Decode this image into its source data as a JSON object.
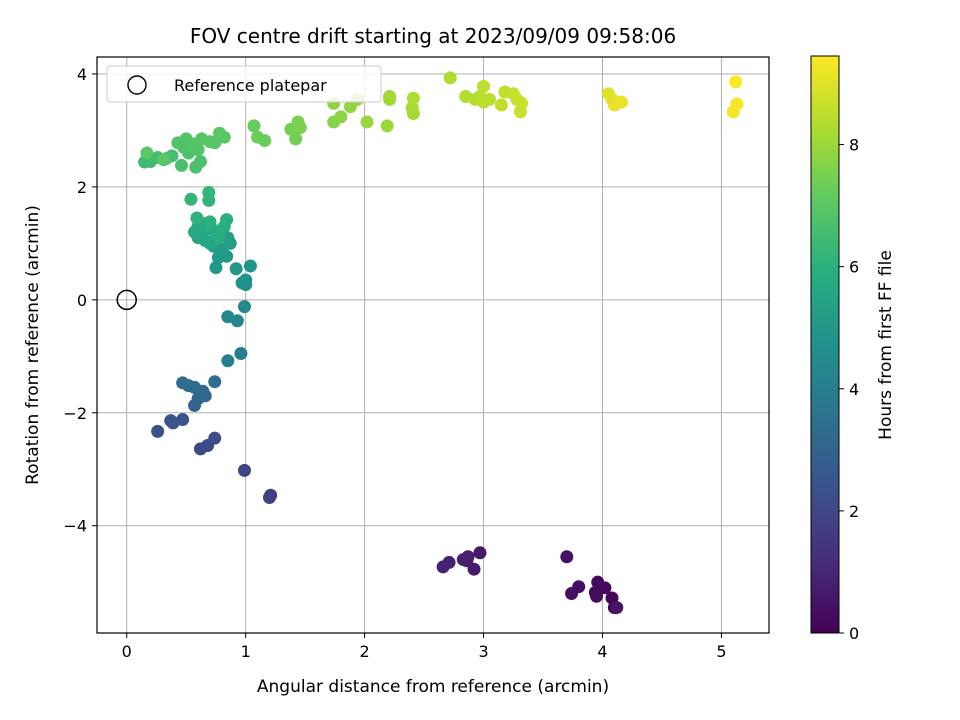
{
  "chart_data": {
    "type": "scatter",
    "title": "FOV centre drift starting at 2023/09/09 09:58:06",
    "xlabel": "Angular distance from reference (arcmin)",
    "ylabel": "Rotation from reference (arcmin)",
    "colorbar_label": "Hours from first FF file",
    "xlim": [
      -0.25,
      5.4
    ],
    "ylim": [
      -5.9,
      4.3
    ],
    "clim": [
      0,
      9.45
    ],
    "xticks": [
      0,
      1,
      2,
      3,
      4,
      5
    ],
    "yticks": [
      -4,
      -2,
      0,
      2,
      4
    ],
    "colorbar_ticks": [
      0,
      2,
      4,
      6,
      8
    ],
    "grid": true,
    "colormap": "viridis",
    "legend": {
      "location": "upper-left",
      "label": "Reference platepar"
    },
    "reference_point": {
      "x": 0,
      "y": 0
    },
    "points": [
      {
        "x": 4.1,
        "y": -5.45,
        "t": 0.05
      },
      {
        "x": 4.08,
        "y": -5.28,
        "t": 0.1
      },
      {
        "x": 4.02,
        "y": -5.1,
        "t": 0.15
      },
      {
        "x": 3.96,
        "y": -5.0,
        "t": 0.2
      },
      {
        "x": 3.94,
        "y": -5.18,
        "t": 0.25
      },
      {
        "x": 3.95,
        "y": -5.25,
        "t": 0.3
      },
      {
        "x": 3.8,
        "y": -5.08,
        "t": 0.35
      },
      {
        "x": 3.74,
        "y": -5.2,
        "t": 0.4
      },
      {
        "x": 3.7,
        "y": -4.55,
        "t": 0.45
      },
      {
        "x": 4.12,
        "y": -5.45,
        "t": 0.5
      },
      {
        "x": 2.97,
        "y": -4.48,
        "t": 0.65
      },
      {
        "x": 2.92,
        "y": -4.77,
        "t": 0.7
      },
      {
        "x": 2.86,
        "y": -4.62,
        "t": 0.75
      },
      {
        "x": 2.87,
        "y": -4.55,
        "t": 0.8
      },
      {
        "x": 2.83,
        "y": -4.6,
        "t": 0.85
      },
      {
        "x": 2.71,
        "y": -4.65,
        "t": 0.9
      },
      {
        "x": 2.66,
        "y": -4.73,
        "t": 0.95
      },
      {
        "x": 1.21,
        "y": -3.46,
        "t": 1.75
      },
      {
        "x": 1.2,
        "y": -3.5,
        "t": 1.8
      },
      {
        "x": 0.99,
        "y": -3.02,
        "t": 1.9
      },
      {
        "x": 0.62,
        "y": -2.64,
        "t": 2.1
      },
      {
        "x": 0.68,
        "y": -2.58,
        "t": 2.15
      },
      {
        "x": 0.74,
        "y": -2.45,
        "t": 2.2
      },
      {
        "x": 0.26,
        "y": -2.33,
        "t": 2.3
      },
      {
        "x": 0.37,
        "y": -2.14,
        "t": 2.35
      },
      {
        "x": 0.39,
        "y": -2.18,
        "t": 2.4
      },
      {
        "x": 0.47,
        "y": -2.12,
        "t": 2.45
      },
      {
        "x": 0.57,
        "y": -1.87,
        "t": 3.0
      },
      {
        "x": 0.6,
        "y": -1.75,
        "t": 3.05
      },
      {
        "x": 0.66,
        "y": -1.7,
        "t": 3.1
      },
      {
        "x": 0.64,
        "y": -1.62,
        "t": 3.2
      },
      {
        "x": 0.57,
        "y": -1.55,
        "t": 3.25
      },
      {
        "x": 0.52,
        "y": -1.52,
        "t": 3.3
      },
      {
        "x": 0.47,
        "y": -1.47,
        "t": 3.35
      },
      {
        "x": 0.74,
        "y": -1.45,
        "t": 3.4
      },
      {
        "x": 0.85,
        "y": -1.08,
        "t": 4.0
      },
      {
        "x": 0.96,
        "y": -0.95,
        "t": 4.05
      },
      {
        "x": 0.93,
        "y": -0.37,
        "t": 4.3
      },
      {
        "x": 0.85,
        "y": -0.3,
        "t": 4.35
      },
      {
        "x": 0.99,
        "y": -0.12,
        "t": 4.4
      },
      {
        "x": 1.0,
        "y": 0.27,
        "t": 4.7
      },
      {
        "x": 1.0,
        "y": 0.35,
        "t": 4.75
      },
      {
        "x": 0.97,
        "y": 0.3,
        "t": 4.8
      },
      {
        "x": 1.04,
        "y": 0.6,
        "t": 4.9
      },
      {
        "x": 0.92,
        "y": 0.55,
        "t": 4.95
      },
      {
        "x": 0.75,
        "y": 0.57,
        "t": 5.0
      },
      {
        "x": 0.77,
        "y": 0.75,
        "t": 5.05
      },
      {
        "x": 0.84,
        "y": 0.77,
        "t": 5.1
      },
      {
        "x": 0.8,
        "y": 0.9,
        "t": 5.15
      },
      {
        "x": 0.73,
        "y": 0.95,
        "t": 5.2
      },
      {
        "x": 0.87,
        "y": 1.0,
        "t": 5.25
      },
      {
        "x": 0.85,
        "y": 1.1,
        "t": 5.3
      },
      {
        "x": 0.8,
        "y": 1.2,
        "t": 5.35
      },
      {
        "x": 0.74,
        "y": 1.05,
        "t": 5.4
      },
      {
        "x": 0.7,
        "y": 1.0,
        "t": 5.45
      },
      {
        "x": 0.66,
        "y": 1.05,
        "t": 5.5
      },
      {
        "x": 0.64,
        "y": 1.15,
        "t": 5.55
      },
      {
        "x": 0.6,
        "y": 1.1,
        "t": 5.6
      },
      {
        "x": 0.57,
        "y": 1.2,
        "t": 5.65
      },
      {
        "x": 0.6,
        "y": 1.3,
        "t": 5.7
      },
      {
        "x": 0.66,
        "y": 1.35,
        "t": 5.75
      },
      {
        "x": 0.72,
        "y": 1.25,
        "t": 5.8
      },
      {
        "x": 0.77,
        "y": 1.1,
        "t": 5.85
      },
      {
        "x": 0.82,
        "y": 1.3,
        "t": 5.9
      },
      {
        "x": 0.84,
        "y": 1.42,
        "t": 5.95
      },
      {
        "x": 0.7,
        "y": 1.38,
        "t": 6.0
      },
      {
        "x": 0.59,
        "y": 1.45,
        "t": 6.05
      },
      {
        "x": 0.69,
        "y": 1.76,
        "t": 6.1
      },
      {
        "x": 0.69,
        "y": 1.9,
        "t": 6.15
      },
      {
        "x": 0.54,
        "y": 1.78,
        "t": 6.2
      },
      {
        "x": 0.15,
        "y": 2.44,
        "t": 6.4
      },
      {
        "x": 0.2,
        "y": 2.45,
        "t": 6.45
      },
      {
        "x": 0.26,
        "y": 2.52,
        "t": 6.5
      },
      {
        "x": 0.33,
        "y": 2.5,
        "t": 6.55
      },
      {
        "x": 0.38,
        "y": 2.55,
        "t": 6.6
      },
      {
        "x": 0.46,
        "y": 2.38,
        "t": 6.65
      },
      {
        "x": 0.58,
        "y": 2.35,
        "t": 6.7
      },
      {
        "x": 0.62,
        "y": 2.45,
        "t": 6.72
      },
      {
        "x": 0.52,
        "y": 2.6,
        "t": 6.75
      },
      {
        "x": 0.48,
        "y": 2.7,
        "t": 6.78
      },
      {
        "x": 0.43,
        "y": 2.78,
        "t": 6.8
      },
      {
        "x": 0.5,
        "y": 2.85,
        "t": 6.82
      },
      {
        "x": 0.56,
        "y": 2.76,
        "t": 6.85
      },
      {
        "x": 0.6,
        "y": 2.66,
        "t": 6.88
      },
      {
        "x": 0.63,
        "y": 2.85,
        "t": 6.9
      },
      {
        "x": 0.7,
        "y": 2.8,
        "t": 6.92
      },
      {
        "x": 0.74,
        "y": 2.78,
        "t": 6.94
      },
      {
        "x": 0.78,
        "y": 2.95,
        "t": 6.96
      },
      {
        "x": 0.82,
        "y": 2.88,
        "t": 6.98
      },
      {
        "x": 0.17,
        "y": 2.6,
        "t": 7.0
      },
      {
        "x": 0.31,
        "y": 2.48,
        "t": 7.02
      },
      {
        "x": 1.07,
        "y": 3.08,
        "t": 7.2
      },
      {
        "x": 1.1,
        "y": 2.88,
        "t": 7.25
      },
      {
        "x": 1.16,
        "y": 2.82,
        "t": 7.3
      },
      {
        "x": 1.42,
        "y": 2.85,
        "t": 7.4
      },
      {
        "x": 1.38,
        "y": 3.02,
        "t": 7.45
      },
      {
        "x": 1.46,
        "y": 3.05,
        "t": 7.5
      },
      {
        "x": 1.44,
        "y": 3.15,
        "t": 7.55
      },
      {
        "x": 1.74,
        "y": 3.15,
        "t": 7.7
      },
      {
        "x": 1.8,
        "y": 3.24,
        "t": 7.75
      },
      {
        "x": 1.74,
        "y": 3.48,
        "t": 7.8
      },
      {
        "x": 1.88,
        "y": 3.42,
        "t": 7.85
      },
      {
        "x": 1.94,
        "y": 3.55,
        "t": 7.9
      },
      {
        "x": 2.02,
        "y": 3.15,
        "t": 7.95
      },
      {
        "x": 2.19,
        "y": 3.08,
        "t": 8.0
      },
      {
        "x": 2.21,
        "y": 3.55,
        "t": 8.05
      },
      {
        "x": 2.21,
        "y": 3.6,
        "t": 8.1
      },
      {
        "x": 2.41,
        "y": 3.3,
        "t": 8.15
      },
      {
        "x": 2.4,
        "y": 3.4,
        "t": 8.2
      },
      {
        "x": 2.41,
        "y": 3.57,
        "t": 8.25
      },
      {
        "x": 2.72,
        "y": 3.93,
        "t": 8.3
      },
      {
        "x": 2.85,
        "y": 3.6,
        "t": 8.35
      },
      {
        "x": 2.93,
        "y": 3.55,
        "t": 8.4
      },
      {
        "x": 2.97,
        "y": 3.6,
        "t": 8.42
      },
      {
        "x": 3.0,
        "y": 3.5,
        "t": 8.45
      },
      {
        "x": 3.05,
        "y": 3.55,
        "t": 8.48
      },
      {
        "x": 3.0,
        "y": 3.78,
        "t": 8.5
      },
      {
        "x": 3.15,
        "y": 3.45,
        "t": 8.55
      },
      {
        "x": 3.18,
        "y": 3.68,
        "t": 8.6
      },
      {
        "x": 3.25,
        "y": 3.65,
        "t": 8.62
      },
      {
        "x": 3.28,
        "y": 3.55,
        "t": 8.65
      },
      {
        "x": 3.32,
        "y": 3.48,
        "t": 8.68
      },
      {
        "x": 3.31,
        "y": 3.33,
        "t": 8.7
      },
      {
        "x": 4.05,
        "y": 3.65,
        "t": 9.0
      },
      {
        "x": 4.08,
        "y": 3.55,
        "t": 9.05
      },
      {
        "x": 4.1,
        "y": 3.45,
        "t": 9.1
      },
      {
        "x": 4.16,
        "y": 3.5,
        "t": 9.15
      },
      {
        "x": 5.1,
        "y": 3.33,
        "t": 9.3
      },
      {
        "x": 5.13,
        "y": 3.47,
        "t": 9.35
      },
      {
        "x": 5.12,
        "y": 3.86,
        "t": 9.4
      }
    ]
  }
}
